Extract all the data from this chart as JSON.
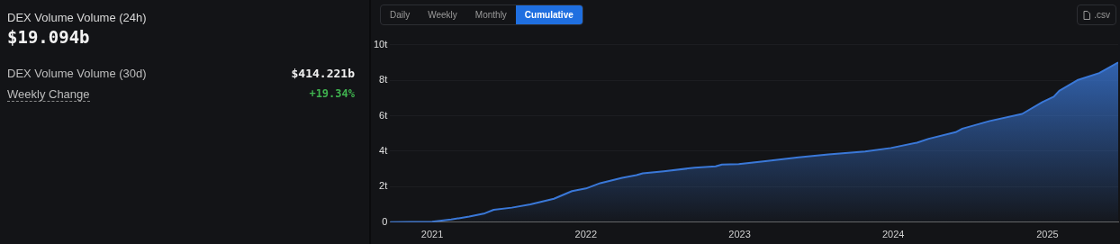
{
  "chart_data": [
    {
      "type": "other",
      "title": "DEX Volume Volume (24h)",
      "annotations": [
        "$19.094b",
        "DEX Volume Volume (30d)",
        "$414.221b",
        "Weekly Change",
        "+19.34%"
      ]
    },
    {
      "type": "area",
      "annotations": [
        "Daily",
        "Weekly",
        "Monthly",
        "Cumulative",
        ".csv"
      ],
      "x": [
        "2020-09-23",
        "2021-01-01",
        "2021-02-15",
        "2021-03-30",
        "2021-05-06",
        "2021-05-27",
        "2021-07-09",
        "2021-08-22",
        "2021-10-17",
        "2021-11-29",
        "2022-01-01",
        "2022-02-04",
        "2022-03-28",
        "2022-05-01",
        "2022-05-16",
        "2022-07-05",
        "2022-09-16",
        "2022-11-05",
        "2022-11-20",
        "2022-12-30",
        "2023-03-08",
        "2023-05-21",
        "2023-07-31",
        "2023-10-26",
        "2023-12-26",
        "2024-02-26",
        "2024-03-25",
        "2024-05-28",
        "2024-06-13",
        "2024-08-17",
        "2024-11-02",
        "2024-12-20",
        "2025-01-16",
        "2025-01-29",
        "2025-03-13",
        "2025-05-04",
        "2025-06-18"
      ],
      "series": [
        {
          "color": "#3a78d8",
          "values": [
            0,
            0.03,
            0.15,
            0.32,
            0.5,
            0.7,
            0.82,
            1.0,
            1.32,
            1.75,
            1.9,
            2.2,
            2.5,
            2.65,
            2.75,
            2.87,
            3.07,
            3.15,
            3.25,
            3.27,
            3.45,
            3.65,
            3.82,
            3.98,
            4.18,
            4.48,
            4.7,
            5.07,
            5.27,
            5.7,
            6.1,
            6.77,
            7.07,
            7.4,
            8.0,
            8.4,
            9.0
          ]
        }
      ],
      "xlim": [
        "2020-09-23",
        "2025-06-18"
      ],
      "xticks": [
        {
          "value": "2021-01-01",
          "label": "2021"
        },
        {
          "value": "2022-01-01",
          "label": "2022"
        },
        {
          "value": "2023-01-01",
          "label": "2023"
        },
        {
          "value": "2024-01-01",
          "label": "2024"
        },
        {
          "value": "2025-01-01",
          "label": "2025"
        }
      ],
      "ylim": [
        0,
        10
      ],
      "yticks": [
        {
          "value": 0,
          "label": "0"
        },
        {
          "value": 2,
          "label": "2t"
        },
        {
          "value": 4,
          "label": "4t"
        },
        {
          "value": 6,
          "label": "6t"
        },
        {
          "value": 8,
          "label": "8t"
        },
        {
          "value": 10,
          "label": "10t"
        }
      ],
      "grid": "y",
      "legend": false,
      "marker": "none",
      "line_style": "solid"
    }
  ]
}
